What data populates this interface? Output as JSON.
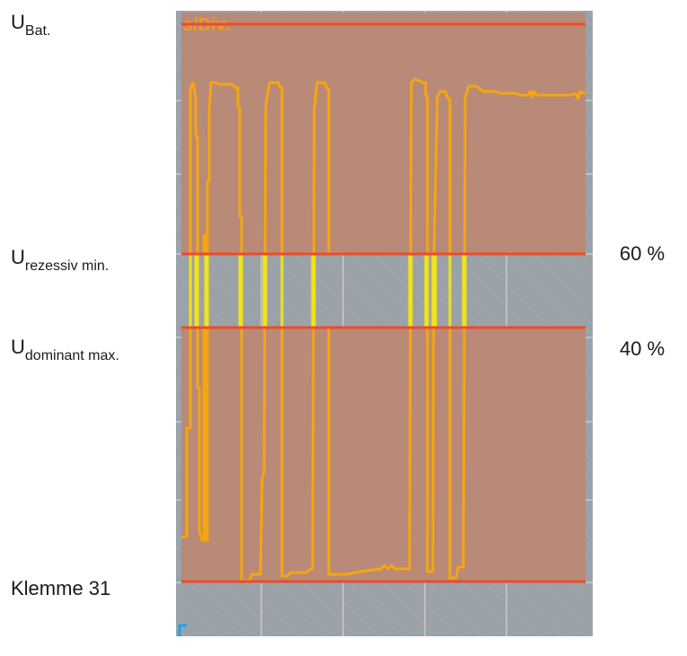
{
  "labels": {
    "ubat": {
      "main": "U",
      "sub": "Bat."
    },
    "urezessiv": {
      "main": "U",
      "sub": "rezessiv min."
    },
    "udominant": {
      "main": "U",
      "sub": "dominant max."
    },
    "klemme": "Klemme 31",
    "pct60": "60 %",
    "pct40": "40 %"
  },
  "scope": {
    "corner_text": "s/Div.",
    "colors": {
      "screen": "#9aa2a8",
      "zone": "#b88a77",
      "limit_line": "#ee4a2a",
      "trace_orange": "#f6a50f",
      "trace_yellow": "#f2e318",
      "grid": "#d9dde0",
      "corner_text": "#f39a1d",
      "cursor": "#1fa0e8"
    }
  }
}
